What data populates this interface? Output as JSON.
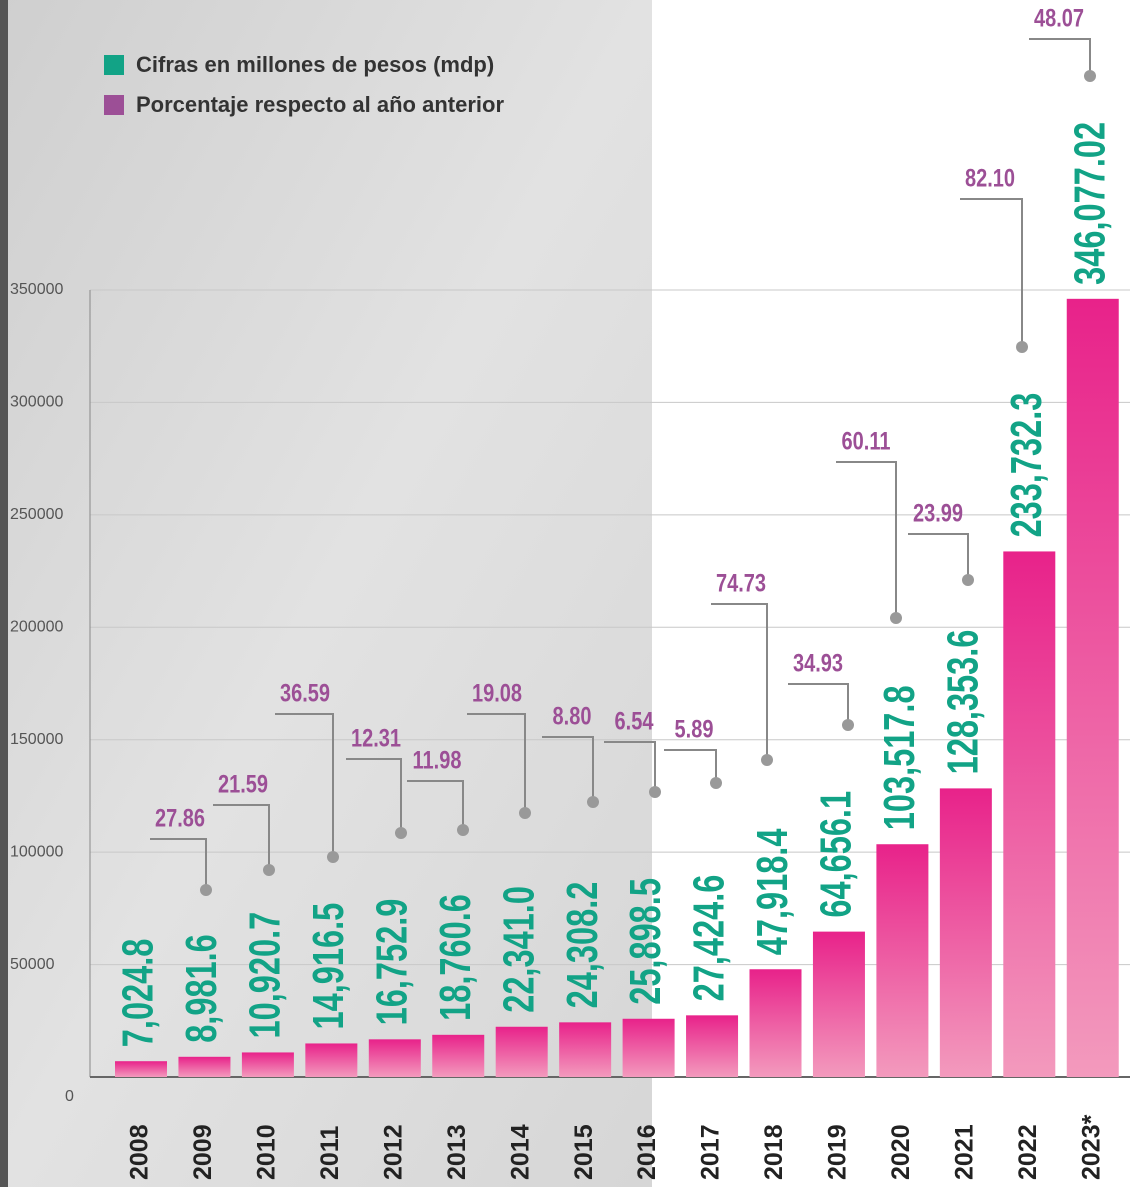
{
  "chart_data": {
    "type": "bar",
    "categories": [
      "2008",
      "2009",
      "2010",
      "2011",
      "2012",
      "2013",
      "2014",
      "2015",
      "2016",
      "2017",
      "2018",
      "2019",
      "2020",
      "2021",
      "2022",
      "2023*"
    ],
    "series": [
      {
        "name": "Cifras en millones de pesos (mdp)",
        "color": "#12a386",
        "values": [
          7024.8,
          8981.6,
          10920.7,
          14916.5,
          16752.9,
          18760.6,
          22341.0,
          24308.2,
          25898.5,
          27424.6,
          47918.4,
          64656.1,
          103517.8,
          128353.6,
          233732.3,
          346077.02
        ],
        "value_labels": [
          "7,024.8",
          "8,981.6",
          "10,920.7",
          "14,916.5",
          "16,752.9",
          "18,760.6",
          "22,341.0",
          "24,308.2",
          "25,898.5",
          "27,424.6",
          "47,918.4",
          "64,656.1",
          "103,517.8",
          "128,353.6",
          "233,732.3",
          "346,077.02"
        ]
      },
      {
        "name": "Porcentaje respecto al año anterior",
        "color": "#9c4f96",
        "values": [
          null,
          27.86,
          21.59,
          36.59,
          12.31,
          11.98,
          19.08,
          8.8,
          6.54,
          5.89,
          74.73,
          34.93,
          60.11,
          23.99,
          82.1,
          48.07
        ],
        "value_labels": [
          null,
          "27.86",
          "21.59",
          "36.59",
          "12.31",
          "11.98",
          "19.08",
          "8.80",
          "6.54",
          "5.89",
          "74.73",
          "34.93",
          "60.11",
          "23.99",
          "82.10",
          "48.07"
        ]
      }
    ],
    "ylim": [
      0,
      350000
    ],
    "yticks": [
      0,
      50000,
      100000,
      150000,
      200000,
      250000,
      300000,
      350000
    ],
    "grid": true
  }
}
